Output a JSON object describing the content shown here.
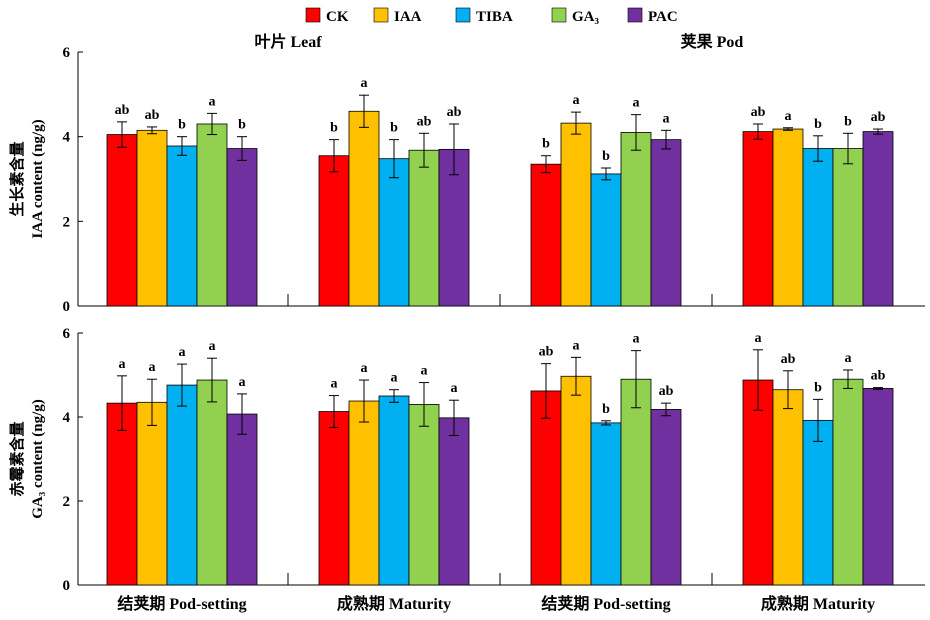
{
  "legend": [
    "CK",
    "IAA",
    "TIBA",
    "GA₃",
    "PAC"
  ],
  "colors": [
    "#ff0000",
    "#ffc000",
    "#00b0f0",
    "#92d050",
    "#7030a0"
  ],
  "panel_titles": [
    "叶片 Leaf",
    "荚果 Pod"
  ],
  "category_labels": [
    "结荚期 Pod-setting",
    "成熟期 Maturity",
    "结荚期 Pod-setting",
    "成熟期 Maturity"
  ],
  "chart_data": [
    {
      "type": "bar",
      "ylabel_cn": "生长素含量",
      "ylabel_en": "IAA content (ng/g)",
      "ylim": [
        0,
        6
      ],
      "yticks": [
        0,
        2,
        4,
        6
      ],
      "categories": [
        "结荚期 Pod-setting",
        "成熟期 Maturity",
        "结荚期 Pod-setting",
        "成熟期 Maturity"
      ],
      "series": [
        {
          "name": "CK",
          "values": [
            4.05,
            3.55,
            3.35,
            4.12
          ],
          "errors": [
            0.3,
            0.38,
            0.2,
            0.18
          ],
          "labels": [
            "ab",
            "b",
            "b",
            "ab"
          ]
        },
        {
          "name": "IAA",
          "values": [
            4.15,
            4.6,
            4.32,
            4.18
          ],
          "errors": [
            0.08,
            0.38,
            0.26,
            0.03
          ],
          "labels": [
            "ab",
            "a",
            "a",
            "a"
          ]
        },
        {
          "name": "TIBA",
          "values": [
            3.78,
            3.48,
            3.12,
            3.72
          ],
          "errors": [
            0.22,
            0.45,
            0.14,
            0.3
          ],
          "labels": [
            "b",
            "b",
            "b",
            "b"
          ]
        },
        {
          "name": "GA₃",
          "values": [
            4.3,
            3.68,
            4.1,
            3.72
          ],
          "errors": [
            0.25,
            0.4,
            0.42,
            0.36
          ],
          "labels": [
            "a",
            "ab",
            "a",
            "b"
          ]
        },
        {
          "name": "PAC",
          "values": [
            3.72,
            3.7,
            3.93,
            4.12
          ],
          "errors": [
            0.28,
            0.6,
            0.22,
            0.06
          ],
          "labels": [
            "b",
            "ab",
            "a",
            "ab"
          ]
        }
      ]
    },
    {
      "type": "bar",
      "ylabel_cn": "赤霉素含量",
      "ylabel_en": "GA₃ content (ng/g)",
      "ylim": [
        0,
        6
      ],
      "yticks": [
        0,
        2,
        4,
        6
      ],
      "categories": [
        "结荚期 Pod-setting",
        "成熟期 Maturity",
        "结荚期 Pod-setting",
        "成熟期 Maturity"
      ],
      "series": [
        {
          "name": "CK",
          "values": [
            4.33,
            4.13,
            4.62,
            4.88
          ],
          "errors": [
            0.65,
            0.38,
            0.65,
            0.72
          ],
          "labels": [
            "a",
            "a",
            "ab",
            "a"
          ]
        },
        {
          "name": "IAA",
          "values": [
            4.35,
            4.38,
            4.97,
            4.65
          ],
          "errors": [
            0.55,
            0.5,
            0.45,
            0.45
          ],
          "labels": [
            "a",
            "a",
            "a",
            "ab"
          ]
        },
        {
          "name": "TIBA",
          "values": [
            4.76,
            4.5,
            3.86,
            3.92
          ],
          "errors": [
            0.5,
            0.15,
            0.05,
            0.5
          ],
          "labels": [
            "a",
            "a",
            "b",
            "b"
          ]
        },
        {
          "name": "GA₃",
          "values": [
            4.88,
            4.3,
            4.9,
            4.9
          ],
          "errors": [
            0.52,
            0.52,
            0.68,
            0.22
          ],
          "labels": [
            "a",
            "a",
            "a",
            "a"
          ]
        },
        {
          "name": "PAC",
          "values": [
            4.07,
            3.98,
            4.18,
            4.68
          ],
          "errors": [
            0.48,
            0.42,
            0.15,
            0.02
          ],
          "labels": [
            "a",
            "a",
            "ab",
            "ab"
          ]
        }
      ]
    }
  ]
}
